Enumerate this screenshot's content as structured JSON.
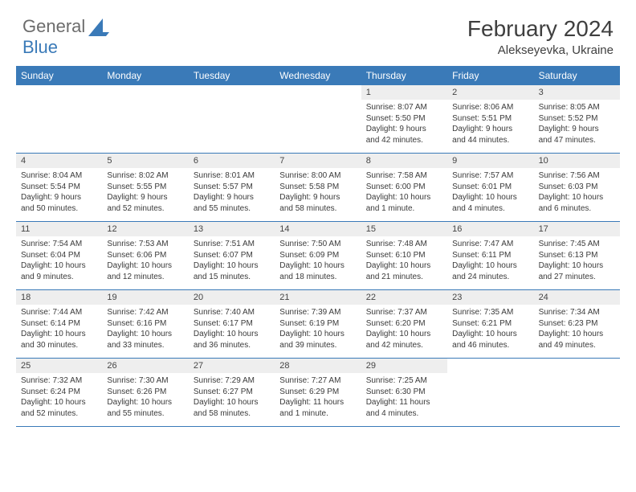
{
  "brand": {
    "part1": "General",
    "part2": "Blue"
  },
  "header": {
    "month_title": "February 2024",
    "location": "Alekseyevka, Ukraine"
  },
  "colors": {
    "accent": "#3a7ab8",
    "header_bg": "#3a7ab8",
    "num_bg": "#eeeeee",
    "rule": "#3a7ab8",
    "text": "#3a3a3a"
  },
  "day_labels": [
    "Sunday",
    "Monday",
    "Tuesday",
    "Wednesday",
    "Thursday",
    "Friday",
    "Saturday"
  ],
  "weeks": [
    [
      null,
      null,
      null,
      null,
      {
        "n": "1",
        "sr": "Sunrise: 8:07 AM",
        "ss": "Sunset: 5:50 PM",
        "dl1": "Daylight: 9 hours",
        "dl2": "and 42 minutes."
      },
      {
        "n": "2",
        "sr": "Sunrise: 8:06 AM",
        "ss": "Sunset: 5:51 PM",
        "dl1": "Daylight: 9 hours",
        "dl2": "and 44 minutes."
      },
      {
        "n": "3",
        "sr": "Sunrise: 8:05 AM",
        "ss": "Sunset: 5:52 PM",
        "dl1": "Daylight: 9 hours",
        "dl2": "and 47 minutes."
      }
    ],
    [
      {
        "n": "4",
        "sr": "Sunrise: 8:04 AM",
        "ss": "Sunset: 5:54 PM",
        "dl1": "Daylight: 9 hours",
        "dl2": "and 50 minutes."
      },
      {
        "n": "5",
        "sr": "Sunrise: 8:02 AM",
        "ss": "Sunset: 5:55 PM",
        "dl1": "Daylight: 9 hours",
        "dl2": "and 52 minutes."
      },
      {
        "n": "6",
        "sr": "Sunrise: 8:01 AM",
        "ss": "Sunset: 5:57 PM",
        "dl1": "Daylight: 9 hours",
        "dl2": "and 55 minutes."
      },
      {
        "n": "7",
        "sr": "Sunrise: 8:00 AM",
        "ss": "Sunset: 5:58 PM",
        "dl1": "Daylight: 9 hours",
        "dl2": "and 58 minutes."
      },
      {
        "n": "8",
        "sr": "Sunrise: 7:58 AM",
        "ss": "Sunset: 6:00 PM",
        "dl1": "Daylight: 10 hours",
        "dl2": "and 1 minute."
      },
      {
        "n": "9",
        "sr": "Sunrise: 7:57 AM",
        "ss": "Sunset: 6:01 PM",
        "dl1": "Daylight: 10 hours",
        "dl2": "and 4 minutes."
      },
      {
        "n": "10",
        "sr": "Sunrise: 7:56 AM",
        "ss": "Sunset: 6:03 PM",
        "dl1": "Daylight: 10 hours",
        "dl2": "and 6 minutes."
      }
    ],
    [
      {
        "n": "11",
        "sr": "Sunrise: 7:54 AM",
        "ss": "Sunset: 6:04 PM",
        "dl1": "Daylight: 10 hours",
        "dl2": "and 9 minutes."
      },
      {
        "n": "12",
        "sr": "Sunrise: 7:53 AM",
        "ss": "Sunset: 6:06 PM",
        "dl1": "Daylight: 10 hours",
        "dl2": "and 12 minutes."
      },
      {
        "n": "13",
        "sr": "Sunrise: 7:51 AM",
        "ss": "Sunset: 6:07 PM",
        "dl1": "Daylight: 10 hours",
        "dl2": "and 15 minutes."
      },
      {
        "n": "14",
        "sr": "Sunrise: 7:50 AM",
        "ss": "Sunset: 6:09 PM",
        "dl1": "Daylight: 10 hours",
        "dl2": "and 18 minutes."
      },
      {
        "n": "15",
        "sr": "Sunrise: 7:48 AM",
        "ss": "Sunset: 6:10 PM",
        "dl1": "Daylight: 10 hours",
        "dl2": "and 21 minutes."
      },
      {
        "n": "16",
        "sr": "Sunrise: 7:47 AM",
        "ss": "Sunset: 6:11 PM",
        "dl1": "Daylight: 10 hours",
        "dl2": "and 24 minutes."
      },
      {
        "n": "17",
        "sr": "Sunrise: 7:45 AM",
        "ss": "Sunset: 6:13 PM",
        "dl1": "Daylight: 10 hours",
        "dl2": "and 27 minutes."
      }
    ],
    [
      {
        "n": "18",
        "sr": "Sunrise: 7:44 AM",
        "ss": "Sunset: 6:14 PM",
        "dl1": "Daylight: 10 hours",
        "dl2": "and 30 minutes."
      },
      {
        "n": "19",
        "sr": "Sunrise: 7:42 AM",
        "ss": "Sunset: 6:16 PM",
        "dl1": "Daylight: 10 hours",
        "dl2": "and 33 minutes."
      },
      {
        "n": "20",
        "sr": "Sunrise: 7:40 AM",
        "ss": "Sunset: 6:17 PM",
        "dl1": "Daylight: 10 hours",
        "dl2": "and 36 minutes."
      },
      {
        "n": "21",
        "sr": "Sunrise: 7:39 AM",
        "ss": "Sunset: 6:19 PM",
        "dl1": "Daylight: 10 hours",
        "dl2": "and 39 minutes."
      },
      {
        "n": "22",
        "sr": "Sunrise: 7:37 AM",
        "ss": "Sunset: 6:20 PM",
        "dl1": "Daylight: 10 hours",
        "dl2": "and 42 minutes."
      },
      {
        "n": "23",
        "sr": "Sunrise: 7:35 AM",
        "ss": "Sunset: 6:21 PM",
        "dl1": "Daylight: 10 hours",
        "dl2": "and 46 minutes."
      },
      {
        "n": "24",
        "sr": "Sunrise: 7:34 AM",
        "ss": "Sunset: 6:23 PM",
        "dl1": "Daylight: 10 hours",
        "dl2": "and 49 minutes."
      }
    ],
    [
      {
        "n": "25",
        "sr": "Sunrise: 7:32 AM",
        "ss": "Sunset: 6:24 PM",
        "dl1": "Daylight: 10 hours",
        "dl2": "and 52 minutes."
      },
      {
        "n": "26",
        "sr": "Sunrise: 7:30 AM",
        "ss": "Sunset: 6:26 PM",
        "dl1": "Daylight: 10 hours",
        "dl2": "and 55 minutes."
      },
      {
        "n": "27",
        "sr": "Sunrise: 7:29 AM",
        "ss": "Sunset: 6:27 PM",
        "dl1": "Daylight: 10 hours",
        "dl2": "and 58 minutes."
      },
      {
        "n": "28",
        "sr": "Sunrise: 7:27 AM",
        "ss": "Sunset: 6:29 PM",
        "dl1": "Daylight: 11 hours",
        "dl2": "and 1 minute."
      },
      {
        "n": "29",
        "sr": "Sunrise: 7:25 AM",
        "ss": "Sunset: 6:30 PM",
        "dl1": "Daylight: 11 hours",
        "dl2": "and 4 minutes."
      },
      null,
      null
    ]
  ]
}
